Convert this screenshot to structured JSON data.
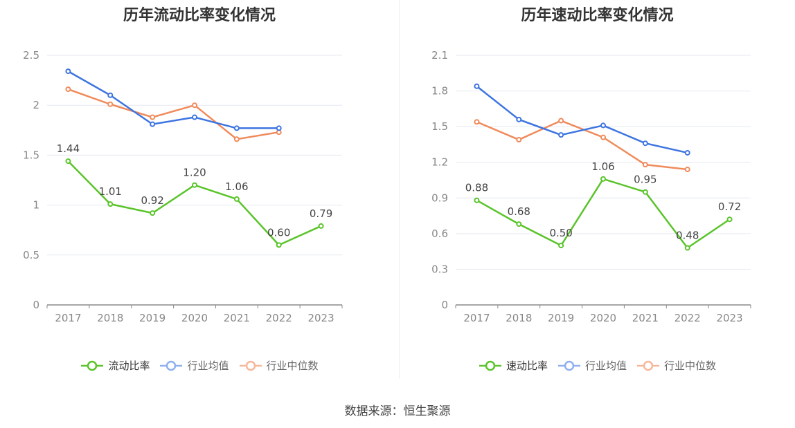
{
  "chart_data": [
    {
      "type": "line",
      "title": "历年流动比率变化情况",
      "categories": [
        "2017",
        "2018",
        "2019",
        "2020",
        "2021",
        "2022",
        "2023"
      ],
      "ylim": [
        0,
        2.5
      ],
      "yticks": [
        "0",
        "0.5",
        "1",
        "1.5",
        "2",
        "2.5"
      ],
      "ytick_values": [
        0,
        0.5,
        1,
        1.5,
        2,
        2.5
      ],
      "grid": true,
      "legend_position": "bottom",
      "series": [
        {
          "name": "流动比率",
          "color": "#5ac42a",
          "values": [
            1.44,
            1.01,
            0.92,
            1.2,
            1.06,
            0.6,
            0.79
          ],
          "labels": [
            "1.44",
            "1.01",
            "0.92",
            "1.20",
            "1.06",
            "0.60",
            "0.79"
          ]
        },
        {
          "name": "行业均值",
          "color": "#3d74e0",
          "values": [
            2.34,
            2.1,
            1.81,
            1.88,
            1.77,
            1.77,
            null
          ]
        },
        {
          "name": "行业中位数",
          "color": "#f08a5a",
          "values": [
            2.16,
            2.01,
            1.88,
            2.0,
            1.66,
            1.73,
            null
          ]
        }
      ]
    },
    {
      "type": "line",
      "title": "历年速动比率变化情况",
      "categories": [
        "2017",
        "2018",
        "2019",
        "2020",
        "2021",
        "2022",
        "2023"
      ],
      "ylim": [
        0,
        2.1
      ],
      "yticks": [
        "0",
        "0.3",
        "0.6",
        "0.9",
        "1.2",
        "1.5",
        "1.8",
        "2.1"
      ],
      "ytick_values": [
        0,
        0.3,
        0.6,
        0.9,
        1.2,
        1.5,
        1.8,
        2.1
      ],
      "grid": true,
      "legend_position": "bottom",
      "series": [
        {
          "name": "速动比率",
          "color": "#5ac42a",
          "values": [
            0.88,
            0.68,
            0.5,
            1.06,
            0.95,
            0.48,
            0.72
          ],
          "labels": [
            "0.88",
            "0.68",
            "0.50",
            "1.06",
            "0.95",
            "0.48",
            "0.72"
          ]
        },
        {
          "name": "行业均值",
          "color": "#3d74e0",
          "values": [
            1.84,
            1.56,
            1.43,
            1.51,
            1.36,
            1.28,
            null
          ]
        },
        {
          "name": "行业中位数",
          "color": "#f08a5a",
          "values": [
            1.54,
            1.39,
            1.55,
            1.41,
            1.18,
            1.14,
            null
          ]
        }
      ]
    }
  ],
  "legend_colors": {
    "primary": "#5ac42a",
    "mean": "#8fb0ee",
    "median": "#f7b79a"
  },
  "source": "数据来源：恒生聚源"
}
